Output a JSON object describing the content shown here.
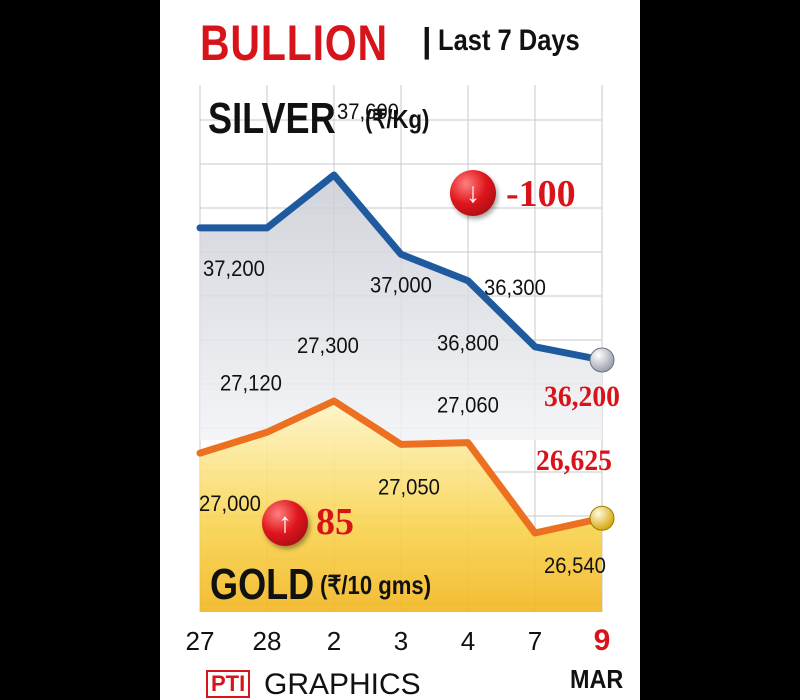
{
  "header": {
    "title": "BULLION",
    "separator": "|",
    "subtitle": "Last 7 Days"
  },
  "silver": {
    "label": "SILVER",
    "unit": "(₹/Kg)",
    "change": "-100",
    "change_direction": "down",
    "change_icon": "down-arrow-icon"
  },
  "gold": {
    "label": "GOLD",
    "unit": "(₹/10 gms)",
    "change": "85",
    "change_direction": "up",
    "change_icon": "up-arrow-icon"
  },
  "x_axis": {
    "month_label": "MAR"
  },
  "credit": {
    "logo": "PTI",
    "text": "GRAPHICS"
  },
  "colors": {
    "accent_red": "#d8141b",
    "silver_line": "#1f5a9e",
    "gold_line": "#ec7020",
    "grid": "#c8c8c8"
  },
  "chart_data": {
    "type": "line",
    "categories": [
      "27",
      "28",
      "2",
      "3",
      "4",
      "7",
      "9"
    ],
    "highlight_category": "9",
    "series": [
      {
        "name": "SILVER",
        "values": [
          37200,
          37200,
          37600,
          37000,
          36800,
          36300,
          36200
        ],
        "labels": [
          "37,200",
          "",
          "37,600",
          "37,000",
          "36,800",
          "36,300",
          "36,200"
        ],
        "highlight_label": "36,200"
      },
      {
        "name": "GOLD",
        "values": [
          27000,
          27120,
          27300,
          27050,
          27060,
          26540,
          26625
        ],
        "labels": [
          "27,000",
          "27,120",
          "27,300",
          "27,050",
          "27,060",
          "26,540",
          "26,625"
        ],
        "highlight_label": "26,625"
      }
    ],
    "grid": true
  }
}
